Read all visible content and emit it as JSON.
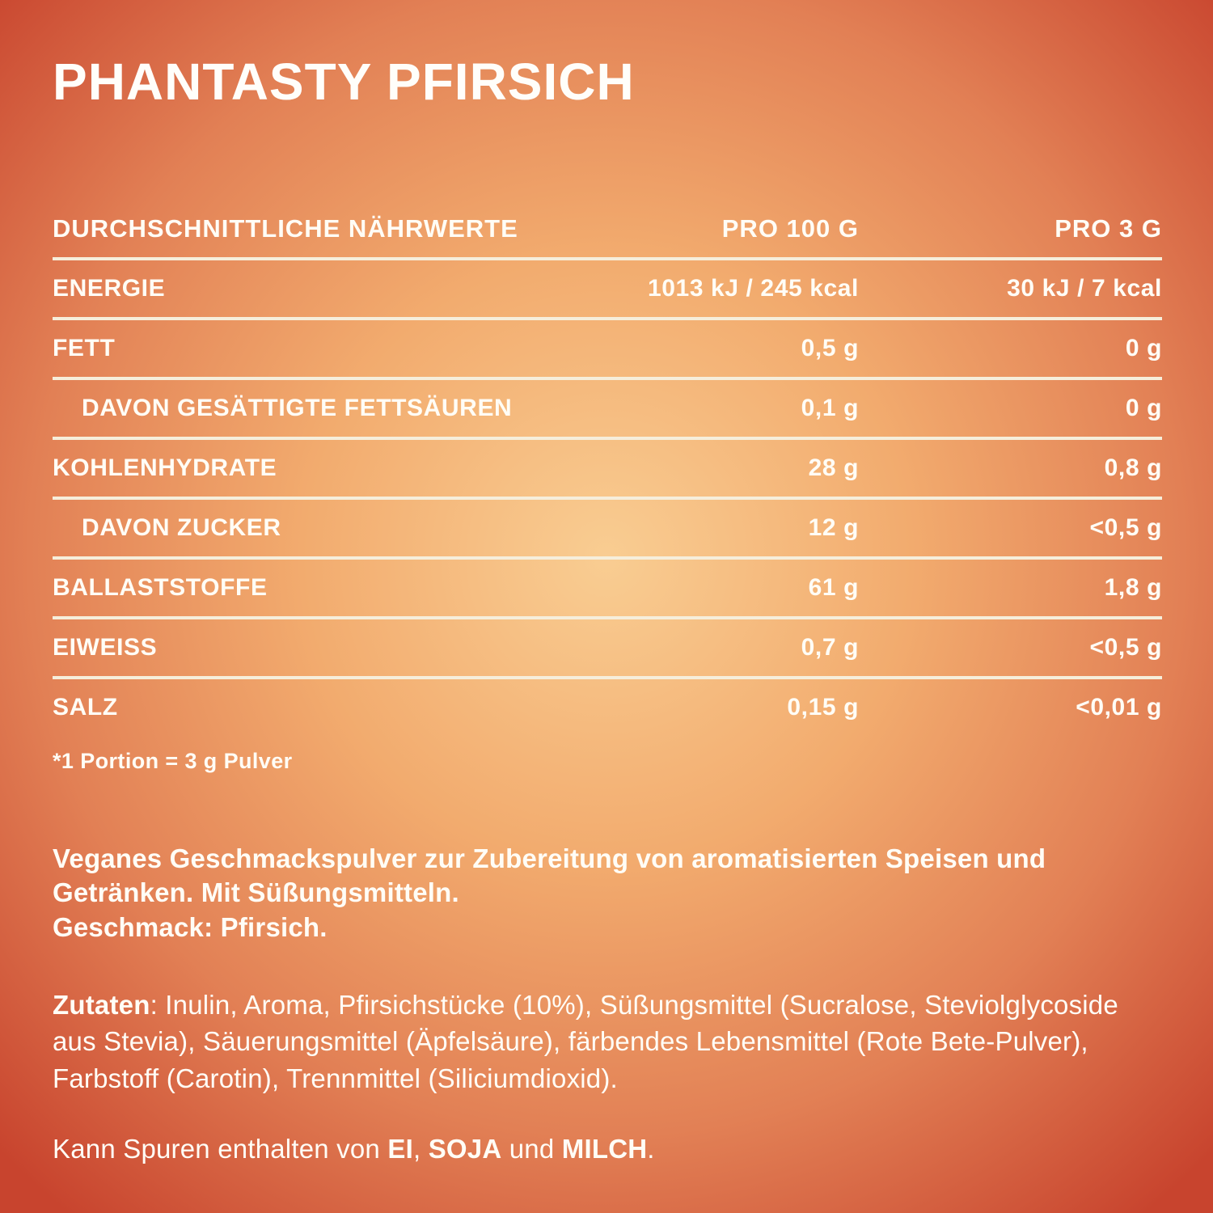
{
  "page": {
    "title": "PHANTASTY PFIRSICH",
    "colors": {
      "background_center": "#f9cd92",
      "background_edge": "#e28055",
      "background_corner": "#c8442e",
      "text": "#fffdf6",
      "divider": "#f6eedb"
    }
  },
  "nutrition_table": {
    "headers": {
      "col1": "DURCHSCHNITTLICHE NÄHRWERTE",
      "col2": "PRO 100 G",
      "col3": "PRO 3 G"
    },
    "rows": [
      {
        "label": "ENERGIE",
        "per100g": "1013 kJ / 245 kcal",
        "per3g": "30 kJ / 7 kcal"
      },
      {
        "label": "FETT",
        "per100g": "0,5 g",
        "per3g": "0 g"
      },
      {
        "label": "DAVON GESÄTTIGTE FETTSÄUREN",
        "per100g": "0,1 g",
        "per3g": "0 g"
      },
      {
        "label": "KOHLENHYDRATE",
        "per100g": "28 g",
        "per3g": "0,8 g"
      },
      {
        "label": "DAVON ZUCKER",
        "per100g": "12 g",
        "per3g": "<0,5 g"
      },
      {
        "label": "BALLASTSTOFFE",
        "per100g": "61 g",
        "per3g": "1,8 g"
      },
      {
        "label": "EIWEISS",
        "per100g": "0,7 g",
        "per3g": "<0,5 g"
      },
      {
        "label": "SALZ",
        "per100g": "0,15 g",
        "per3g": "<0,01 g"
      }
    ],
    "footnote": "*1 Portion = 3 g Pulver"
  },
  "description": {
    "main": "Veganes Geschmackspulver zur Zubereitung von aromatisierten Speisen und Getränken. Mit Süßungsmitteln.",
    "flavor": "Geschmack: Pfirsich."
  },
  "ingredients": {
    "label": "Zutaten",
    "text": ": Inulin, Aroma, Pfirsichstücke (10%), Süßungsmittel (Sucralose, Steviolglycoside aus Stevia), Säuerungsmittel (Äpfelsäure), färbendes Lebensmittel (Rote Bete-Pulver), Farbstoff (Carotin), Trennmittel (Siliciumdioxid)."
  },
  "allergens": {
    "prefix": "Kann Spuren enthalten von ",
    "item1": "EI",
    "sep1": ", ",
    "item2": "SOJA",
    "sep2": " und ",
    "item3": "MILCH",
    "suffix": "."
  }
}
